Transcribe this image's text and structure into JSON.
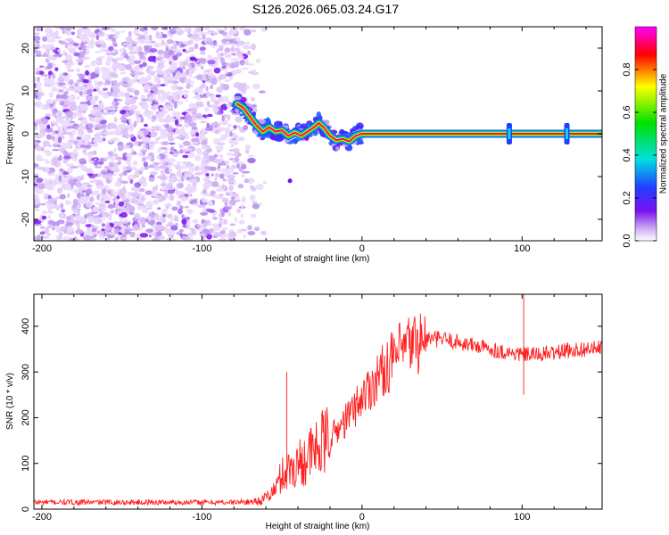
{
  "title": "S126.2026.065.03.24.G17",
  "chart_data": [
    {
      "type": "heatmap",
      "name": "spectrogram",
      "xlabel": "Height of straight line (km)",
      "ylabel": "Frequency (Hz)",
      "xlim": [
        -205,
        150
      ],
      "ylim": [
        -25,
        25
      ],
      "xticks": [
        -200,
        -100,
        0,
        100
      ],
      "yticks": [
        -20,
        -10,
        0,
        10,
        20
      ],
      "colorbar": {
        "label": "Normalized spectral amplitude",
        "range": [
          0,
          1
        ],
        "ticks": [
          "0.0",
          "0.2",
          "0.4",
          "0.6",
          "0.8"
        ],
        "colors": [
          "#ffffff",
          "#c8a8f0",
          "#7a10f0",
          "#2040ff",
          "#00e0e0",
          "#00e000",
          "#ffff00",
          "#ff0000",
          "#ff00ff"
        ]
      },
      "noise_region_x": [
        -205,
        -70
      ],
      "ridge": {
        "x": [
          -78,
          -74,
          -70,
          -66,
          -62,
          -58,
          -54,
          -50,
          -46,
          -42,
          -38,
          -34,
          -30,
          -27,
          -24,
          -20,
          -16,
          -12,
          -8,
          -4,
          0,
          20,
          40,
          60,
          80,
          100,
          120,
          150
        ],
        "y": [
          7,
          6,
          4,
          2,
          0.5,
          1.5,
          0.5,
          0.8,
          -0.5,
          0.3,
          -0.5,
          0.5,
          1.5,
          2.5,
          1.5,
          -0.5,
          -1.5,
          -1.2,
          -1.8,
          -0.5,
          0,
          0,
          0,
          0,
          0,
          0,
          0,
          0
        ]
      },
      "spikes_x": [
        92,
        128
      ],
      "outlier": {
        "x": -45,
        "y": -11
      }
    },
    {
      "type": "line",
      "name": "snr",
      "xlabel": "Height of straight line (km)",
      "ylabel": "SNR (10 * v/v)",
      "xlim": [
        -205,
        150
      ],
      "ylim": [
        0,
        470
      ],
      "xticks": [
        -200,
        -100,
        0,
        100
      ],
      "yticks": [
        0,
        100,
        200,
        300,
        400
      ],
      "color": "#ff2020",
      "baseline_level": 15,
      "trend": {
        "x": [
          -205,
          -80,
          -70,
          -62,
          -55,
          -50,
          -40,
          -30,
          -20,
          -10,
          0,
          10,
          20,
          30,
          40,
          50,
          60,
          70,
          80,
          90,
          100,
          110,
          120,
          130,
          140,
          150
        ],
        "y": [
          15,
          15,
          16,
          20,
          40,
          75,
          100,
          125,
          155,
          195,
          245,
          290,
          330,
          360,
          372,
          372,
          365,
          358,
          350,
          343,
          338,
          338,
          342,
          348,
          350,
          352
        ]
      },
      "features": [
        {
          "x": -47,
          "y": 300
        },
        {
          "x": 101,
          "y": 470
        },
        {
          "x": 101,
          "y": 250
        }
      ]
    }
  ]
}
